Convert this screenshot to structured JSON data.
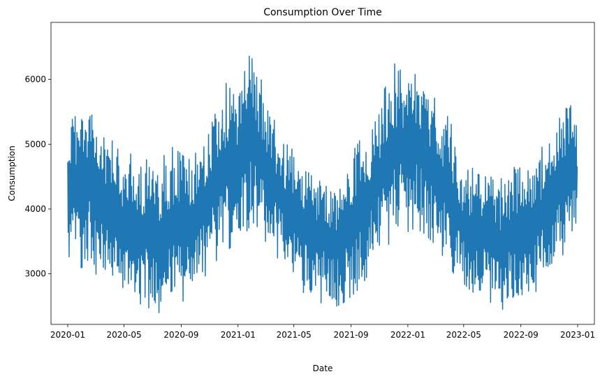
{
  "chart_data": {
    "type": "line",
    "title": "Consumption Over Time",
    "xlabel": "Date",
    "ylabel": "Consumption",
    "xlim": [
      "2019-11-26",
      "2023-02-06"
    ],
    "ylim": [
      2220,
      6880
    ],
    "grid": false,
    "legend": "none",
    "x_ticks": [
      "2020-01",
      "2020-05",
      "2020-09",
      "2021-01",
      "2021-05",
      "2021-09",
      "2022-01",
      "2022-05",
      "2022-09",
      "2023-01"
    ],
    "y_ticks": [
      3000,
      4000,
      5000,
      6000
    ],
    "series": [
      {
        "color": "#1f77b4",
        "x": [
          "2020-01-01",
          "2020-01-15",
          "2020-02-01",
          "2020-02-15",
          "2020-03-01",
          "2020-03-15",
          "2020-04-01",
          "2020-04-15",
          "2020-05-01",
          "2020-05-15",
          "2020-06-01",
          "2020-06-15",
          "2020-07-01",
          "2020-07-15",
          "2020-08-01",
          "2020-08-15",
          "2020-09-01",
          "2020-09-15",
          "2020-10-01",
          "2020-10-15",
          "2020-11-01",
          "2020-11-15",
          "2020-12-01",
          "2020-12-15",
          "2021-01-01",
          "2021-01-15",
          "2021-02-01",
          "2021-02-15",
          "2021-03-01",
          "2021-03-15",
          "2021-04-01",
          "2021-04-15",
          "2021-05-01",
          "2021-05-15",
          "2021-06-01",
          "2021-06-15",
          "2021-07-01",
          "2021-07-15",
          "2021-08-01",
          "2021-08-15",
          "2021-09-01",
          "2021-09-15",
          "2021-10-01",
          "2021-10-15",
          "2021-11-01",
          "2021-11-15",
          "2021-12-01",
          "2021-12-15",
          "2022-01-01",
          "2022-01-15",
          "2022-02-01",
          "2022-02-15",
          "2022-03-01",
          "2022-03-15",
          "2022-04-01",
          "2022-04-15",
          "2022-05-01",
          "2022-05-15",
          "2022-06-01",
          "2022-06-15",
          "2022-07-01",
          "2022-07-15",
          "2022-08-01",
          "2022-08-15",
          "2022-09-01",
          "2022-09-15",
          "2022-10-01",
          "2022-10-15",
          "2022-11-01",
          "2022-11-15",
          "2022-12-01",
          "2022-12-15",
          "2022-12-31"
        ],
        "upper": [
          5400,
          5700,
          5750,
          5800,
          5500,
          5100,
          5100,
          4950,
          4800,
          4850,
          4900,
          4750,
          4800,
          4600,
          4950,
          4950,
          4850,
          4750,
          4850,
          5100,
          5500,
          5700,
          5900,
          6000,
          5800,
          6300,
          6650,
          6100,
          5800,
          5400,
          5300,
          5000,
          4900,
          4800,
          4750,
          4600,
          4700,
          4500,
          4350,
          4700,
          4850,
          5000,
          5200,
          5400,
          5700,
          5900,
          6200,
          6400,
          6200,
          6400,
          6100,
          5800,
          5700,
          5500,
          5400,
          5000,
          4600,
          4600,
          4700,
          4600,
          4700,
          4400,
          4600,
          4800,
          4900,
          4800,
          4800,
          4950,
          5000,
          5300,
          5500,
          5900,
          5200
        ],
        "lower": [
          2970,
          3050,
          3100,
          3050,
          3000,
          2900,
          2800,
          2700,
          2650,
          2600,
          2550,
          2500,
          2450,
          2400,
          2450,
          2500,
          2550,
          2650,
          2750,
          2900,
          3050,
          3200,
          3300,
          3400,
          3500,
          3600,
          3800,
          3700,
          3500,
          3350,
          3200,
          3050,
          2900,
          2750,
          2650,
          2550,
          2550,
          2500,
          2500,
          2550,
          2650,
          2750,
          2900,
          3100,
          3250,
          3400,
          3550,
          3600,
          3650,
          3700,
          3650,
          3550,
          3450,
          3300,
          3100,
          2950,
          2850,
          2750,
          2650,
          2600,
          2550,
          2450,
          2450,
          2500,
          2550,
          2600,
          2700,
          2850,
          3000,
          3150,
          3300,
          3400,
          3700
        ]
      }
    ]
  }
}
